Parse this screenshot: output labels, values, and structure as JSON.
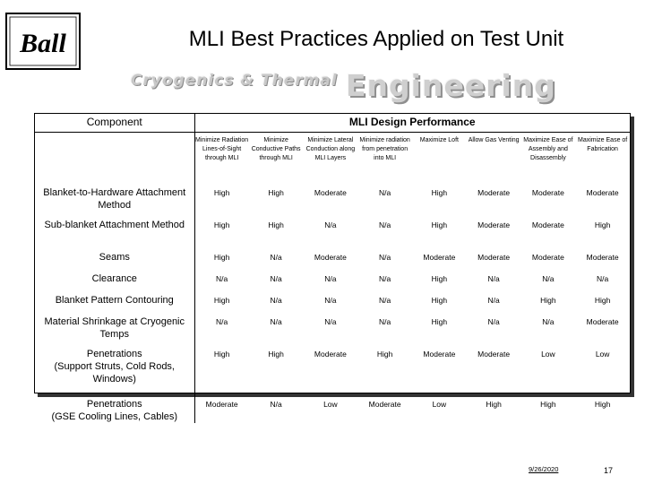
{
  "header": {
    "logo_text": "Ball",
    "title": "MLI Best Practices Applied on Test Unit",
    "banner_left": "Cryogenics & Thermal",
    "banner_right": "Engineering"
  },
  "table": {
    "component_header": "Component",
    "performance_header": "MLI Design Performance",
    "columns": [
      "Minimize Radiation Lines-of-Sight through MLI",
      "Minimize Conductive Paths through MLI",
      "Minimize Lateral Conduction along MLI Layers",
      "Minimize radiation from penetration into MLI",
      "Maximize Loft",
      "Allow Gas Venting",
      "Maximize Ease of Assembly and Disassembly",
      "Maximize Ease of Fabrication"
    ],
    "rows": [
      {
        "label": "Blanket-to-Hardware Attachment Method",
        "sub": "",
        "values": [
          "High",
          "High",
          "Moderate",
          "N/a",
          "High",
          "Moderate",
          "Moderate",
          "Moderate"
        ]
      },
      {
        "label": "Sub-blanket Attachment Method",
        "sub": "",
        "values": [
          "High",
          "High",
          "N/a",
          "N/a",
          "High",
          "Moderate",
          "Moderate",
          "High"
        ]
      },
      {
        "label": "Seams",
        "sub": "",
        "values": [
          "High",
          "N/a",
          "Moderate",
          "N/a",
          "Moderate",
          "Moderate",
          "Moderate",
          "Moderate"
        ]
      },
      {
        "label": "Clearance",
        "sub": "",
        "values": [
          "N/a",
          "N/a",
          "N/a",
          "N/a",
          "High",
          "N/a",
          "N/a",
          "N/a"
        ]
      },
      {
        "label": "Blanket Pattern Contouring",
        "sub": "",
        "values": [
          "High",
          "N/a",
          "N/a",
          "N/a",
          "High",
          "N/a",
          "High",
          "High"
        ]
      },
      {
        "label": "Material Shrinkage at Cryogenic Temps",
        "sub": "",
        "values": [
          "N/a",
          "N/a",
          "N/a",
          "N/a",
          "High",
          "N/a",
          "N/a",
          "Moderate"
        ]
      },
      {
        "label": "Penetrations",
        "sub": "(Support Struts, Cold Rods, Windows)",
        "values": [
          "High",
          "High",
          "Moderate",
          "High",
          "Moderate",
          "Moderate",
          "Low",
          "Low"
        ]
      },
      {
        "label": "Penetrations",
        "sub": "(GSE Cooling Lines, Cables)",
        "values": [
          "Moderate",
          "N/a",
          "Low",
          "Moderate",
          "Low",
          "High",
          "High",
          "High"
        ]
      }
    ]
  },
  "footer": {
    "date": "9/26/2020",
    "page": "17"
  }
}
